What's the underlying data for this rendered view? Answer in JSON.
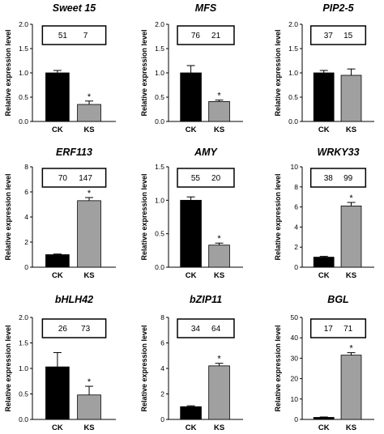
{
  "chart_data": [
    {
      "type": "bar",
      "title": "Sweet 15",
      "categories": [
        "CK",
        "KS"
      ],
      "values": [
        1.0,
        0.35
      ],
      "errors": [
        0.05,
        0.07
      ],
      "ylabel": "Relative expression level",
      "ylim": [
        0,
        2.0
      ],
      "yticks": [
        "0.0",
        "0.5",
        "1.0",
        "1.5",
        "2.0"
      ],
      "box_values": [
        "51",
        "7"
      ],
      "significance": [
        "",
        "*"
      ],
      "colors": [
        "#000000",
        "#a0a0a0"
      ]
    },
    {
      "type": "bar",
      "title": "MFS",
      "categories": [
        "CK",
        "KS"
      ],
      "values": [
        1.0,
        0.41
      ],
      "errors": [
        0.15,
        0.03
      ],
      "ylabel": "Relative expression level",
      "ylim": [
        0,
        2.0
      ],
      "yticks": [
        "0.0",
        "0.5",
        "1.0",
        "1.5",
        "2.0"
      ],
      "box_values": [
        "76",
        "21"
      ],
      "significance": [
        "",
        "*"
      ],
      "colors": [
        "#000000",
        "#a0a0a0"
      ]
    },
    {
      "type": "bar",
      "title": "PIP2-5",
      "categories": [
        "CK",
        "KS"
      ],
      "values": [
        1.0,
        0.95
      ],
      "errors": [
        0.05,
        0.13
      ],
      "ylabel": "Relative expression level",
      "ylim": [
        0,
        2.0
      ],
      "yticks": [
        "0.0",
        "0.5",
        "1.0",
        "1.5",
        "2.0"
      ],
      "box_values": [
        "37",
        "15"
      ],
      "significance": [
        "",
        ""
      ],
      "colors": [
        "#000000",
        "#a0a0a0"
      ]
    },
    {
      "type": "bar",
      "title": "ERF113",
      "categories": [
        "CK",
        "KS"
      ],
      "values": [
        1.0,
        5.3
      ],
      "errors": [
        0.05,
        0.25
      ],
      "ylabel": "Relative expression level",
      "ylim": [
        0,
        8
      ],
      "yticks": [
        "0",
        "2",
        "4",
        "6",
        "8"
      ],
      "box_values": [
        "70",
        "147"
      ],
      "significance": [
        "",
        "*"
      ],
      "colors": [
        "#000000",
        "#a0a0a0"
      ]
    },
    {
      "type": "bar",
      "title": "AMY",
      "categories": [
        "CK",
        "KS"
      ],
      "values": [
        1.0,
        0.33
      ],
      "errors": [
        0.05,
        0.03
      ],
      "ylabel": "Relative expression level",
      "ylim": [
        0,
        1.5
      ],
      "yticks": [
        "0.0",
        "0.5",
        "1.0",
        "1.5"
      ],
      "box_values": [
        "55",
        "20"
      ],
      "significance": [
        "",
        "*"
      ],
      "colors": [
        "#000000",
        "#a0a0a0"
      ]
    },
    {
      "type": "bar",
      "title": "WRKY33",
      "categories": [
        "CK",
        "KS"
      ],
      "values": [
        1.0,
        6.1
      ],
      "errors": [
        0.08,
        0.35
      ],
      "ylabel": "Relative expression level",
      "ylim": [
        0,
        10
      ],
      "yticks": [
        "0",
        "2",
        "4",
        "6",
        "8",
        "10"
      ],
      "box_values": [
        "38",
        "99"
      ],
      "significance": [
        "",
        "*"
      ],
      "colors": [
        "#000000",
        "#a0a0a0"
      ]
    },
    {
      "type": "bar",
      "title": "bHLH42",
      "categories": [
        "CK",
        "KS"
      ],
      "values": [
        1.03,
        0.48
      ],
      "errors": [
        0.28,
        0.17
      ],
      "ylabel": "Relative expression level",
      "ylim": [
        0,
        2.0
      ],
      "yticks": [
        "0.0",
        "0.5",
        "1.0",
        "1.5",
        "2.0"
      ],
      "box_values": [
        "26",
        "73"
      ],
      "significance": [
        "",
        "*"
      ],
      "colors": [
        "#000000",
        "#a0a0a0"
      ]
    },
    {
      "type": "bar",
      "title": "bZIP11",
      "categories": [
        "CK",
        "KS"
      ],
      "values": [
        1.0,
        4.2
      ],
      "errors": [
        0.07,
        0.2
      ],
      "ylabel": "Relative expression level",
      "ylim": [
        0,
        8
      ],
      "yticks": [
        "0",
        "2",
        "4",
        "6",
        "8"
      ],
      "box_values": [
        "34",
        "64"
      ],
      "significance": [
        "",
        "*"
      ],
      "colors": [
        "#000000",
        "#a0a0a0"
      ]
    },
    {
      "type": "bar",
      "title": "BGL",
      "categories": [
        "CK",
        "KS"
      ],
      "values": [
        1.0,
        31.5
      ],
      "errors": [
        0.2,
        1.2
      ],
      "ylabel": "Relative expression level",
      "ylim": [
        0,
        50
      ],
      "yticks": [
        "0",
        "10",
        "20",
        "30",
        "40",
        "50"
      ],
      "box_values": [
        "17",
        "71"
      ],
      "significance": [
        "",
        "*"
      ],
      "colors": [
        "#000000",
        "#a0a0a0"
      ]
    }
  ]
}
